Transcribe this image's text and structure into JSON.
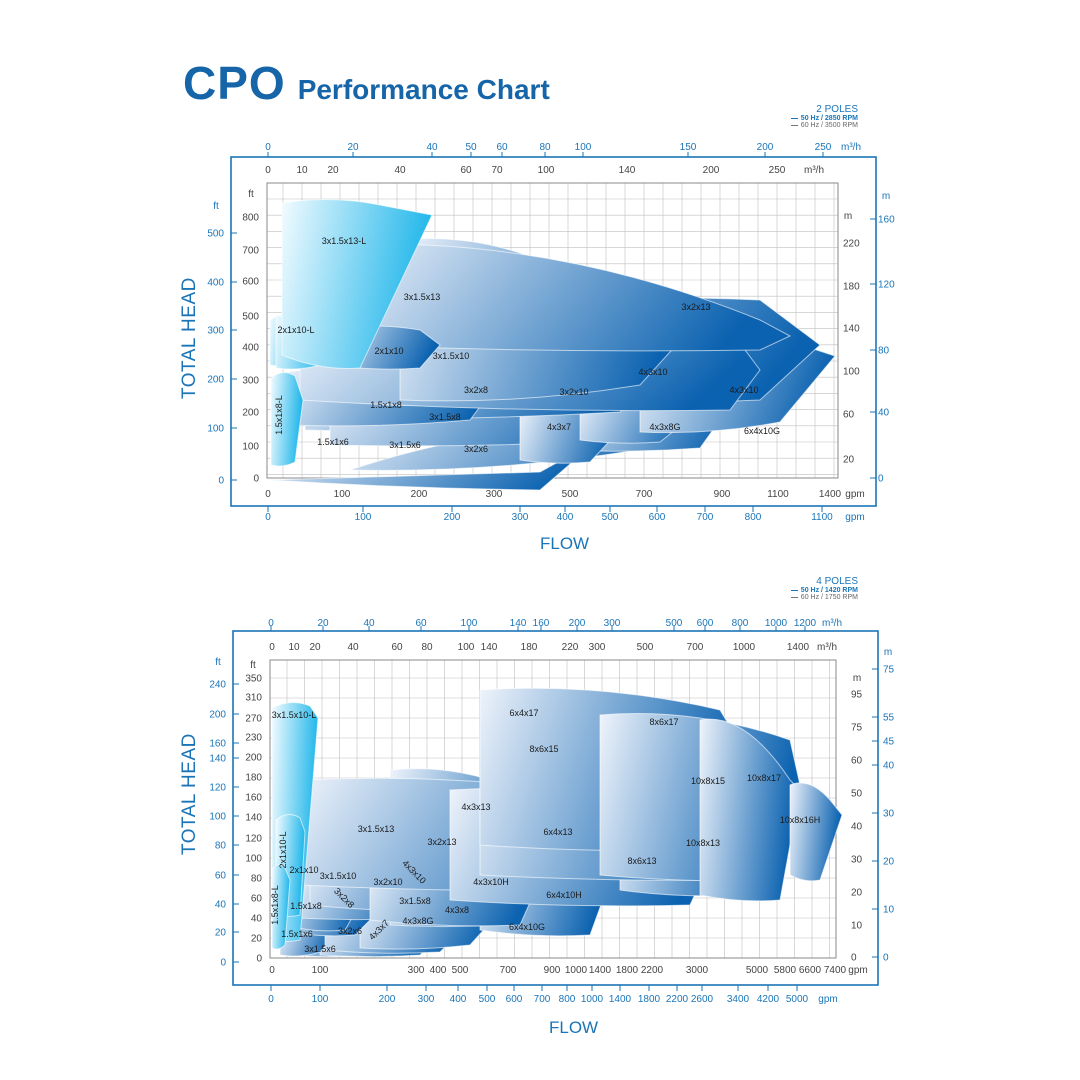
{
  "title": {
    "brand": "CPO",
    "subtitle": "Performance Chart"
  },
  "colors": {
    "accent": "#1565a8",
    "curve_dark": "#0b62b0",
    "curve_light": "#eef3fb",
    "cyan": "#1fb6ea",
    "grid": "#bfbfbf"
  },
  "chart_data": [
    {
      "type": "area",
      "name": "2 POLES",
      "header": {
        "poles": "2 POLES",
        "line1": "50 Hz / 2850 RPM",
        "line2": "60 Hz / 3500 RPM"
      },
      "axis_titles": {
        "y": "TOTAL HEAD",
        "x": "FLOW"
      },
      "units": {
        "ft": "ft",
        "m": "m",
        "m3h": "m³/h",
        "gpm": "gpm"
      },
      "inner_x_gpm": {
        "range": [
          0,
          1400
        ],
        "ticks": [
          "0",
          "100",
          "200",
          "300",
          "500",
          "700",
          "900",
          "1100",
          "1400"
        ],
        "label_nodes": [
          "0",
          "100",
          "200",
          "300",
          "500",
          "700",
          "900",
          "1100",
          "1400"
        ]
      },
      "inner_x_m3h": {
        "ticks": [
          "0",
          "10",
          "20",
          "40",
          "60",
          "70",
          "100",
          "140",
          "200",
          "250"
        ],
        "positions_gpm": [
          0,
          44,
          88,
          176,
          264,
          308,
          440,
          616,
          880,
          1100
        ]
      },
      "outer_x_m3h": {
        "ticks": [
          "0",
          "20",
          "40",
          "50",
          "60",
          "80",
          "100",
          "150",
          "200",
          "250"
        ],
        "positions": [
          0,
          88,
          176,
          220,
          264,
          352,
          440,
          660,
          880,
          1100
        ]
      },
      "outer_x_gpm": {
        "ticks": [
          "0",
          "100",
          "200",
          "300",
          "400",
          "500",
          "600",
          "700",
          "800",
          "1100"
        ]
      },
      "inner_y_ft": {
        "range": [
          0,
          850
        ],
        "ticks": [
          "0",
          "100",
          "200",
          "300",
          "400",
          "500",
          "600",
          "700",
          "800"
        ]
      },
      "inner_y_m": {
        "ticks": [
          "20",
          "60",
          "100",
          "140",
          "180",
          "220"
        ]
      },
      "outer_y_ft": {
        "ticks": [
          "0",
          "100",
          "200",
          "300",
          "400",
          "500"
        ]
      },
      "outer_y_m": {
        "ticks": [
          "0",
          "40",
          "80",
          "120",
          "160"
        ]
      },
      "models": [
        {
          "label": "3x1.5x13-L",
          "style": "cyan"
        },
        {
          "label": "3x1.5x13"
        },
        {
          "label": "3x2x13"
        },
        {
          "label": "2x1x10-L",
          "style": "cyan"
        },
        {
          "label": "2x1x10"
        },
        {
          "label": "3x1.5x10"
        },
        {
          "label": "3x2x10"
        },
        {
          "label": "4x3x10"
        },
        {
          "label": "4x3x10"
        },
        {
          "label": "1.5x1x8-L",
          "style": "cyan"
        },
        {
          "label": "1.5x1x8"
        },
        {
          "label": "3x1.5x8"
        },
        {
          "label": "3x2x8"
        },
        {
          "label": "4x3x7"
        },
        {
          "label": "4x3x8G"
        },
        {
          "label": "6x4x10G"
        },
        {
          "label": "1.5x1x6"
        },
        {
          "label": "3x1.5x6"
        },
        {
          "label": "3x2x6"
        }
      ]
    },
    {
      "type": "area",
      "name": "4 POLES",
      "header": {
        "poles": "4 POLES",
        "line1": "50 Hz / 1420 RPM",
        "line2": "60 Hz / 1750 RPM"
      },
      "axis_titles": {
        "y": "TOTAL HEAD",
        "x": "FLOW"
      },
      "units": {
        "ft": "ft",
        "m": "m",
        "m3h": "m³/h",
        "gpm": "gpm"
      },
      "inner_x_gpm": {
        "scale": "log",
        "ticks": [
          "0",
          "100",
          "300",
          "400",
          "500",
          "700",
          "900",
          "1000",
          "1400",
          "1800",
          "2200",
          "3000",
          "5000",
          "5800",
          "6600",
          "7400"
        ]
      },
      "inner_x_m3h": {
        "ticks": [
          "0",
          "10",
          "20",
          "40",
          "60",
          "80",
          "100",
          "140",
          "180",
          "220",
          "300",
          "500",
          "700",
          "1000",
          "1400"
        ]
      },
      "outer_x_m3h": {
        "ticks": [
          "0",
          "20",
          "40",
          "60",
          "100",
          "140",
          "160",
          "200",
          "300",
          "500",
          "600",
          "800",
          "1000",
          "1200"
        ]
      },
      "outer_x_gpm": {
        "ticks": [
          "0",
          "100",
          "200",
          "300",
          "400",
          "500",
          "600",
          "700",
          "800",
          "1000",
          "1400",
          "1800",
          "2200",
          "2600",
          "3400",
          "4200",
          "5000"
        ]
      },
      "inner_y_ft": {
        "ticks": [
          "0",
          "20",
          "40",
          "60",
          "80",
          "100",
          "120",
          "140",
          "160",
          "180",
          "200",
          "230",
          "270",
          "310",
          "350"
        ]
      },
      "inner_y_m": {
        "ticks": [
          "0",
          "10",
          "20",
          "30",
          "40",
          "50",
          "60",
          "75",
          "95"
        ]
      },
      "outer_y_ft": {
        "ticks": [
          "0",
          "20",
          "40",
          "60",
          "80",
          "100",
          "120",
          "140",
          "160",
          "200",
          "240"
        ]
      },
      "outer_y_m": {
        "ticks": [
          "0",
          "10",
          "20",
          "30",
          "40",
          "45",
          "55",
          "75"
        ]
      },
      "models": [
        {
          "label": "3x1.5x10-L",
          "style": "cyan"
        },
        {
          "label": "2x1x10-L",
          "style": "cyan"
        },
        {
          "label": "1.5x1x8-L",
          "style": "cyan"
        },
        {
          "label": "6x4x17"
        },
        {
          "label": "8x6x17"
        },
        {
          "label": "8x6x15"
        },
        {
          "label": "10x8x17"
        },
        {
          "label": "10x8x15"
        },
        {
          "label": "10x8x16H"
        },
        {
          "label": "4x3x13"
        },
        {
          "label": "3x1.5x13"
        },
        {
          "label": "3x2x13"
        },
        {
          "label": "6x4x13"
        },
        {
          "label": "8x6x13"
        },
        {
          "label": "10x8x13"
        },
        {
          "label": "2x1x10"
        },
        {
          "label": "3x1.5x10"
        },
        {
          "label": "3x2x10"
        },
        {
          "label": "4x3x10"
        },
        {
          "label": "4x3x10H"
        },
        {
          "label": "6x4x10H"
        },
        {
          "label": "3x2x8"
        },
        {
          "label": "1.5x1x8"
        },
        {
          "label": "3x1.5x8"
        },
        {
          "label": "4x3x8"
        },
        {
          "label": "4x3x8G"
        },
        {
          "label": "6x4x10G"
        },
        {
          "label": "1.5x1x6"
        },
        {
          "label": "3x2x6"
        },
        {
          "label": "4x3x7"
        },
        {
          "label": "3x1.5x6"
        }
      ]
    }
  ]
}
